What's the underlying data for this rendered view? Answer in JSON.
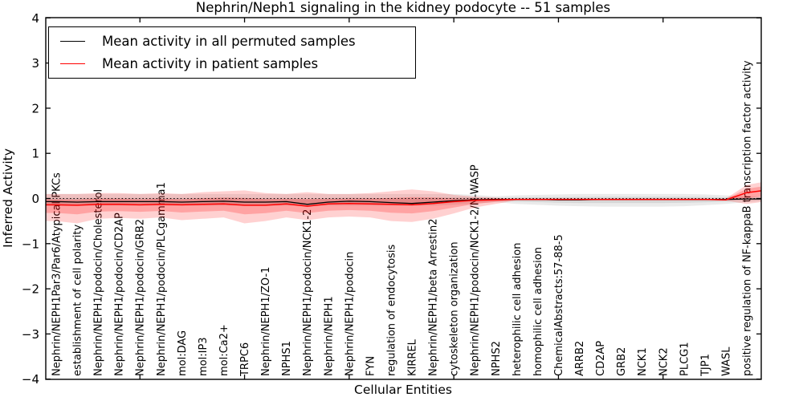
{
  "chart_data": {
    "type": "line",
    "title": "Nephrin/Neph1 signaling in the kidney podocyte -- 51 samples",
    "xlabel": "Cellular Entities",
    "ylabel": "Inferred Activity",
    "ylim": [
      -4,
      4
    ],
    "ytick_labels": [
      "4",
      "3",
      "2",
      "1",
      "0",
      "−1",
      "−2",
      "−3",
      "−4"
    ],
    "ytick_values": [
      4,
      3,
      2,
      1,
      0,
      -1,
      -2,
      -3,
      -4
    ],
    "grid": false,
    "zero_reference_line": 0,
    "legend_position": "upper left",
    "categories": [
      "Nephrin/NEPH1Par3/Par6/Atypical PKCs",
      "establishment of cell polarity",
      "Nephrin/NEPH1/podocin/Cholesterol",
      "Nephrin/NEPH1/podocin/CD2AP",
      "Nephrin/NEPH1/podocin/GRB2",
      "Nephrin/NEPH1/podocin/PLCgamma1",
      "mol:DAG",
      "mol:IP3",
      "mol:Ca2+",
      "TRPC6",
      "Nephrin/NEPH1/ZO-1",
      "NPHS1",
      "Nephrin/NEPH1/podocin/NCK1-2",
      "Nephrin/NEPH1",
      "Nephrin/NEPH1/podocin",
      "FYN",
      "regulation of endocytosis",
      "KIRREL",
      "Nephrin/NEPH1/beta Arrestin2",
      "cytoskeleton organization",
      "Nephrin/NEPH1/podocin/NCK1-2/N-WASP",
      "NPHS2",
      "heterophilic cell adhesion",
      "homophilic cell adhesion",
      "ChemicalAbstracts:57-88-5",
      "ARRB2",
      "CD2AP",
      "GRB2",
      "NCK1",
      "NCK2",
      "PLCG1",
      "TJP1",
      "WASL",
      "positive regulation of NF-kappaB transcription factor activity"
    ],
    "series": [
      {
        "name": "Mean activity in all permuted samples",
        "color": "#000000",
        "band_color": "#808080",
        "values": [
          -0.07,
          -0.08,
          -0.07,
          -0.07,
          -0.07,
          -0.07,
          -0.08,
          -0.07,
          -0.06,
          -0.08,
          -0.08,
          -0.07,
          -0.13,
          -0.08,
          -0.06,
          -0.07,
          -0.09,
          -0.11,
          -0.08,
          -0.05,
          -0.03,
          -0.02,
          -0.02,
          -0.02,
          -0.03,
          -0.03,
          -0.02,
          -0.02,
          -0.02,
          -0.02,
          -0.02,
          -0.02,
          -0.02,
          -0.01
        ],
        "band_high": [
          0.1,
          0.1,
          0.1,
          0.1,
          0.1,
          0.1,
          0.1,
          0.1,
          0.1,
          0.1,
          0.1,
          0.1,
          0.1,
          0.1,
          0.1,
          0.1,
          0.1,
          0.1,
          0.1,
          0.1,
          0.08,
          0.05,
          0.07,
          0.08,
          0.09,
          0.1,
          0.1,
          0.1,
          0.1,
          0.1,
          0.1,
          0.09,
          0.07,
          0.05
        ],
        "band_low": [
          -0.16,
          -0.16,
          -0.16,
          -0.16,
          -0.16,
          -0.16,
          -0.16,
          -0.16,
          -0.16,
          -0.16,
          -0.16,
          -0.16,
          -0.16,
          -0.16,
          -0.16,
          -0.16,
          -0.16,
          -0.16,
          -0.16,
          -0.14,
          -0.11,
          -0.08,
          -0.12,
          -0.14,
          -0.16,
          -0.17,
          -0.18,
          -0.18,
          -0.18,
          -0.18,
          -0.17,
          -0.15,
          -0.12,
          -0.08
        ],
        "edge_value": -0.01,
        "edge_high": 0.04,
        "edge_low": -0.06
      },
      {
        "name": "Mean activity in patient samples",
        "color": "#ff0000",
        "band_color": "#ff0000",
        "values": [
          -0.14,
          -0.15,
          -0.13,
          -0.13,
          -0.14,
          -0.13,
          -0.14,
          -0.13,
          -0.12,
          -0.15,
          -0.15,
          -0.12,
          -0.17,
          -0.12,
          -0.11,
          -0.12,
          -0.13,
          -0.14,
          -0.11,
          -0.07,
          -0.04,
          -0.03,
          -0.02,
          -0.02,
          -0.02,
          -0.02,
          -0.02,
          -0.02,
          -0.02,
          -0.02,
          -0.02,
          -0.02,
          -0.03,
          0.13
        ],
        "band_high": [
          0.1,
          0.1,
          0.12,
          0.12,
          0.1,
          0.12,
          0.1,
          0.14,
          0.16,
          0.18,
          0.12,
          0.1,
          0.14,
          0.1,
          0.1,
          0.12,
          0.16,
          0.2,
          0.16,
          0.08,
          0.04,
          0.02,
          -0.01,
          -0.01,
          -0.01,
          -0.01,
          -0.01,
          -0.01,
          -0.01,
          -0.01,
          -0.01,
          -0.01,
          0.0,
          0.3
        ],
        "band_low": [
          -0.5,
          -0.55,
          -0.45,
          -0.43,
          -0.45,
          -0.42,
          -0.48,
          -0.45,
          -0.42,
          -0.55,
          -0.5,
          -0.42,
          -0.48,
          -0.42,
          -0.4,
          -0.42,
          -0.5,
          -0.52,
          -0.45,
          -0.33,
          -0.2,
          -0.12,
          -0.04,
          -0.04,
          -0.04,
          -0.04,
          -0.04,
          -0.04,
          -0.04,
          -0.04,
          -0.04,
          -0.04,
          -0.05,
          -0.12
        ],
        "edge_value": 0.17,
        "edge_high": 0.36,
        "edge_low": -0.08
      }
    ]
  }
}
